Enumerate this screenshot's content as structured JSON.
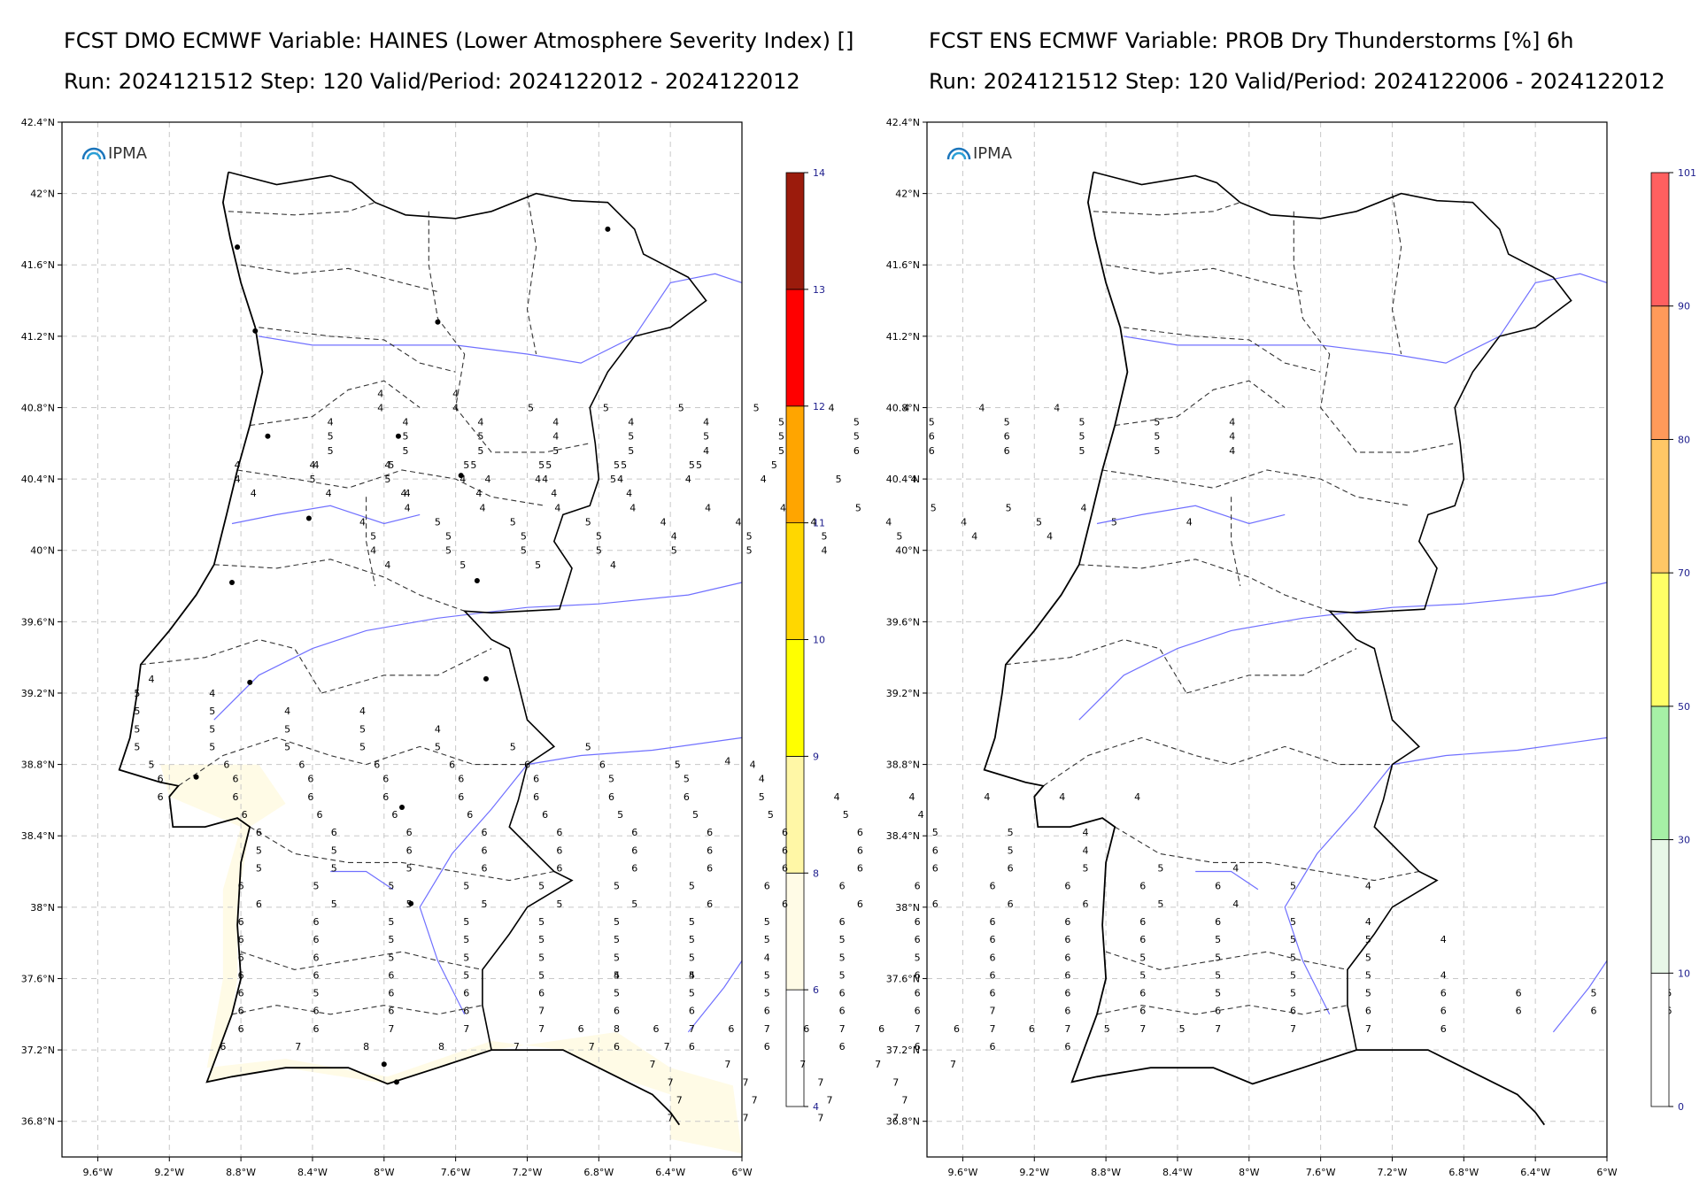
{
  "left_panel": {
    "title": "FCST DMO ECMWF Variable: HAINES (Lower Atmosphere Severity Index) []",
    "run_line": "Run: 2024121512 Step: 120 Valid/Period: 2024122012 - 2024122012",
    "logo_text": "IPMA",
    "colorbar": {
      "ticks": [
        "4",
        "6",
        "8",
        "9",
        "10",
        "11",
        "12",
        "13",
        "14"
      ],
      "colors": [
        "#ffffff",
        "#fffbe6",
        "#fff7a6",
        "#ffff00",
        "#ffd700",
        "#ffa500",
        "#ff0000",
        "#9b1b0c"
      ]
    },
    "grid_values": [
      {
        "lat": 40.88,
        "lon": -8.02,
        "values": [
          "4",
          "4"
        ]
      },
      {
        "lat": 40.8,
        "lon": -8.02,
        "values": [
          "4",
          "4",
          "5",
          "5",
          "5",
          "5",
          "4",
          "4",
          "4",
          "4"
        ]
      },
      {
        "lat": 40.72,
        "lon": -8.3,
        "values": [
          "4",
          "4",
          "4",
          "4",
          "4",
          "4",
          "5",
          "5",
          "5",
          "5",
          "5",
          "5",
          "4"
        ]
      },
      {
        "lat": 40.64,
        "lon": -8.3,
        "values": [
          "5",
          "5",
          "5",
          "4",
          "5",
          "5",
          "5",
          "5",
          "6",
          "6",
          "5",
          "5",
          "4"
        ]
      },
      {
        "lat": 40.56,
        "lon": -8.3,
        "values": [
          "5",
          "5",
          "5",
          "5",
          "5",
          "4",
          "5",
          "6",
          "6",
          "6",
          "5",
          "5",
          "4"
        ]
      },
      {
        "lat": 40.48,
        "lon": -8.82,
        "values": [
          "4",
          "4",
          "4"
        ]
      },
      {
        "lat": 40.48,
        "lon": -8.38,
        "values": [
          "4",
          "5",
          "5",
          "5",
          "5",
          "5"
        ]
      },
      {
        "lat": 40.48,
        "lon": -7.5,
        "values": [
          "5",
          "5",
          "5",
          "5",
          "5"
        ]
      },
      {
        "lat": 40.4,
        "lon": -8.82,
        "values": [
          "4",
          "5",
          "5",
          "4",
          "4",
          "5",
          "4",
          "4",
          "5",
          "4"
        ]
      },
      {
        "lat": 40.4,
        "lon": -7.42,
        "values": [
          "4"
        ]
      },
      {
        "lat": 40.4,
        "lon": -7.1,
        "values": [
          "4",
          "4"
        ]
      },
      {
        "lat": 40.32,
        "lon": -8.73,
        "values": [
          "4",
          "4",
          "4",
          "4",
          "4",
          "4"
        ]
      },
      {
        "lat": 40.32,
        "lon": -7.87,
        "values": [
          "4"
        ]
      },
      {
        "lat": 40.24,
        "lon": -7.87,
        "values": [
          "4",
          "4",
          "4",
          "4",
          "4",
          "4",
          "5",
          "5",
          "5",
          "4"
        ]
      },
      {
        "lat": 40.16,
        "lon": -8.12,
        "values": [
          "4",
          "5",
          "5",
          "5",
          "4",
          "4",
          "4",
          "4",
          "4",
          "5",
          "5",
          "4"
        ]
      },
      {
        "lat": 40.08,
        "lon": -8.06,
        "values": [
          "5",
          "5",
          "5",
          "5",
          "4",
          "5",
          "5",
          "5",
          "4",
          "4"
        ]
      },
      {
        "lat": 40.0,
        "lon": -8.06,
        "values": [
          "4",
          "5",
          "5",
          "5",
          "5",
          "5",
          "4"
        ]
      },
      {
        "lat": 39.92,
        "lon": -7.98,
        "values": [
          "4",
          "5",
          "5",
          "4"
        ]
      },
      {
        "lat": 39.28,
        "lon": -9.3,
        "values": [
          "4"
        ]
      },
      {
        "lat": 39.2,
        "lon": -9.38,
        "values": [
          "5",
          "4"
        ]
      },
      {
        "lat": 39.1,
        "lon": -9.38,
        "values": [
          "5",
          "5",
          "4",
          "4"
        ]
      },
      {
        "lat": 39.0,
        "lon": -9.38,
        "values": [
          "5",
          "5",
          "5",
          "5",
          "4"
        ]
      },
      {
        "lat": 38.9,
        "lon": -9.38,
        "values": [
          "5",
          "5",
          "5",
          "5",
          "5",
          "5",
          "5"
        ]
      },
      {
        "lat": 38.82,
        "lon": -6.08,
        "values": [
          "4"
        ]
      },
      {
        "lat": 38.8,
        "lon": -9.3,
        "values": [
          "5",
          "6",
          "6",
          "6",
          "6",
          "6",
          "6",
          "5",
          "4"
        ]
      },
      {
        "lat": 38.72,
        "lon": -9.25,
        "values": [
          "6",
          "6",
          "6",
          "6",
          "6",
          "6",
          "5",
          "5",
          "4"
        ]
      },
      {
        "lat": 38.62,
        "lon": -9.25,
        "values": [
          "6",
          "6",
          "6",
          "6",
          "6",
          "6",
          "6",
          "6",
          "5",
          "4",
          "4",
          "4",
          "4",
          "4"
        ]
      },
      {
        "lat": 38.52,
        "lon": -8.78,
        "values": [
          "6",
          "6",
          "6",
          "6",
          "6",
          "5",
          "5",
          "5",
          "5",
          "4"
        ]
      },
      {
        "lat": 38.42,
        "lon": -8.7,
        "values": [
          "6",
          "6",
          "6",
          "6",
          "6",
          "6",
          "6",
          "6",
          "6",
          "5",
          "5",
          "4"
        ]
      },
      {
        "lat": 38.32,
        "lon": -8.7,
        "values": [
          "5",
          "5",
          "6",
          "6",
          "6",
          "6",
          "6",
          "6",
          "6",
          "6",
          "5",
          "4"
        ]
      },
      {
        "lat": 38.22,
        "lon": -8.7,
        "values": [
          "5",
          "5",
          "5",
          "6",
          "6",
          "6",
          "6",
          "6",
          "6",
          "6",
          "6",
          "5",
          "5",
          "4"
        ]
      },
      {
        "lat": 38.12,
        "lon": -8.8,
        "values": [
          "6",
          "5",
          "5",
          "5",
          "5",
          "5",
          "5",
          "6",
          "6",
          "6",
          "6",
          "6",
          "6",
          "6",
          "5",
          "4"
        ]
      },
      {
        "lat": 38.02,
        "lon": -8.7,
        "values": [
          "6",
          "5",
          "5",
          "5",
          "5",
          "5",
          "6",
          "6",
          "6",
          "6",
          "6",
          "6",
          "5",
          "4"
        ]
      },
      {
        "lat": 37.92,
        "lon": -8.8,
        "values": [
          "6",
          "6",
          "5",
          "5",
          "5",
          "5",
          "5",
          "5",
          "6",
          "6",
          "6",
          "6",
          "6",
          "6",
          "5",
          "4"
        ]
      },
      {
        "lat": 37.82,
        "lon": -8.8,
        "values": [
          "6",
          "6",
          "5",
          "5",
          "5",
          "5",
          "5",
          "5",
          "5",
          "6",
          "6",
          "6",
          "6",
          "5",
          "5",
          "5",
          "4"
        ]
      },
      {
        "lat": 37.72,
        "lon": -8.8,
        "values": [
          "6",
          "6",
          "5",
          "5",
          "5",
          "5",
          "5",
          "4",
          "5",
          "5",
          "6",
          "6",
          "5",
          "5",
          "5",
          "5"
        ]
      },
      {
        "lat": 37.62,
        "lon": -8.8,
        "values": [
          "6",
          "6",
          "6",
          "5",
          "5",
          "5",
          "5",
          "5",
          "5",
          "6",
          "6",
          "6",
          "5",
          "5",
          "5",
          "5",
          "4"
        ]
      },
      {
        "lat": 37.62,
        "lon": -6.7,
        "values": [
          "4",
          "4"
        ]
      },
      {
        "lat": 37.52,
        "lon": -8.8,
        "values": [
          "6",
          "5",
          "6",
          "6",
          "6",
          "5",
          "5",
          "5",
          "6",
          "6",
          "6",
          "6",
          "6",
          "5",
          "5",
          "5",
          "6",
          "6",
          "5",
          "5",
          "5",
          "5",
          "5",
          "4",
          "4",
          "4"
        ]
      },
      {
        "lat": 37.42,
        "lon": -8.8,
        "values": [
          "6",
          "6",
          "6",
          "6",
          "7",
          "6",
          "6",
          "6",
          "6",
          "6",
          "7",
          "6",
          "6",
          "6",
          "6",
          "6",
          "6",
          "6",
          "6",
          "6",
          "6",
          "6",
          "5",
          "5",
          "5",
          "5",
          "5",
          "5"
        ]
      },
      {
        "lat": 37.32,
        "lon": -8.8,
        "values": [
          "6",
          "6",
          "7",
          "7",
          "7",
          "8",
          "7",
          "7",
          "7",
          "7",
          "7",
          "7",
          "7",
          "7",
          "7",
          "7",
          "6"
        ]
      },
      {
        "lat": 37.32,
        "lon": -6.9,
        "values": [
          "6",
          "6",
          "6",
          "6",
          "6",
          "6",
          "6",
          "5",
          "5"
        ]
      },
      {
        "lat": 37.22,
        "lon": -8.9,
        "values": [
          "6",
          "7"
        ]
      },
      {
        "lat": 37.22,
        "lon": -8.1,
        "values": [
          "8",
          "8",
          "7",
          "7",
          "7"
        ]
      },
      {
        "lat": 37.22,
        "lon": -6.7,
        "values": [
          "6",
          "6",
          "6",
          "6",
          "6",
          "6",
          "6"
        ]
      },
      {
        "lat": 37.12,
        "lon": -6.5,
        "values": [
          "7",
          "7",
          "7",
          "7",
          "7"
        ]
      },
      {
        "lat": 37.02,
        "lon": -6.4,
        "values": [
          "7",
          "7",
          "7",
          "7"
        ]
      },
      {
        "lat": 36.92,
        "lon": -6.35,
        "values": [
          "7",
          "7",
          "7",
          "7"
        ]
      },
      {
        "lat": 36.82,
        "lon": -6.4,
        "values": [
          "7",
          "7",
          "7",
          "7"
        ]
      }
    ]
  },
  "right_panel": {
    "title": "FCST ENS ECMWF Variable: PROB Dry Thunderstorms [%] 6h",
    "run_line": "Run: 2024121512 Step: 120 Valid/Period: 2024122006 - 2024122012",
    "logo_text": "IPMA",
    "colorbar": {
      "ticks": [
        "0",
        "10",
        "30",
        "50",
        "70",
        "80",
        "90",
        "101"
      ],
      "colors": [
        "#ffffff",
        "#e8f7e8",
        "#a6f0a6",
        "#ffff66",
        "#ffc766",
        "#ff9a5a",
        "#ff6060"
      ]
    }
  },
  "map_axes": {
    "lat_ticks": [
      "42.4°N",
      "42°N",
      "41.6°N",
      "41.2°N",
      "40.8°N",
      "40.4°N",
      "40°N",
      "39.6°N",
      "39.2°N",
      "38.8°N",
      "38.4°N",
      "38°N",
      "37.6°N",
      "37.2°N",
      "36.8°N"
    ],
    "lon_ticks": [
      "9.6°W",
      "9.2°W",
      "8.8°W",
      "8.4°W",
      "8°W",
      "7.6°W",
      "7.2°W",
      "6.8°W",
      "6.4°W",
      "6°W"
    ],
    "lat_range": [
      36.6,
      42.4
    ],
    "lon_range": [
      -9.8,
      -6.0
    ]
  },
  "colors": {
    "coast": "#000000",
    "border": "#1c1c9c",
    "river": "#7070ff",
    "district": "#333333",
    "grid": "#c8c8c8",
    "tick_text": "#000000",
    "cbar_tick": "#1c1c8c"
  }
}
